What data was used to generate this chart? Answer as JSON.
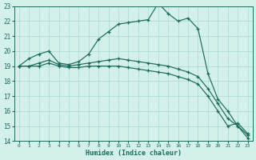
{
  "xlabel": "Humidex (Indice chaleur)",
  "bg_color": "#d4f0ea",
  "line_color": "#1a6b5a",
  "grid_color": "#b0ddd6",
  "xmin": -0.5,
  "xmax": 23.5,
  "ymin": 14,
  "ymax": 23,
  "x_ticks": [
    0,
    1,
    2,
    3,
    4,
    5,
    6,
    7,
    8,
    9,
    10,
    11,
    12,
    13,
    14,
    15,
    16,
    17,
    18,
    19,
    20,
    21,
    22,
    23
  ],
  "y_ticks": [
    14,
    15,
    16,
    17,
    18,
    19,
    20,
    21,
    22,
    23
  ],
  "line1_y": [
    19.0,
    19.5,
    19.8,
    20.0,
    19.2,
    19.1,
    19.3,
    19.8,
    20.8,
    21.3,
    21.8,
    21.9,
    22.0,
    22.1,
    23.2,
    22.5,
    22.0,
    22.2,
    21.5,
    18.5,
    16.8,
    16.0,
    15.0,
    14.2
  ],
  "line2_y": [
    19.0,
    19.0,
    19.2,
    19.4,
    19.1,
    19.0,
    19.1,
    19.2,
    19.3,
    19.4,
    19.5,
    19.4,
    19.3,
    19.2,
    19.1,
    19.0,
    18.8,
    18.6,
    18.3,
    17.5,
    16.5,
    15.5,
    15.0,
    14.4
  ],
  "line3_y": [
    19.0,
    19.0,
    19.0,
    19.2,
    19.0,
    18.9,
    18.9,
    19.0,
    19.0,
    19.0,
    19.0,
    18.9,
    18.8,
    18.7,
    18.6,
    18.5,
    18.3,
    18.1,
    17.8,
    17.0,
    16.0,
    15.0,
    15.2,
    14.5
  ]
}
